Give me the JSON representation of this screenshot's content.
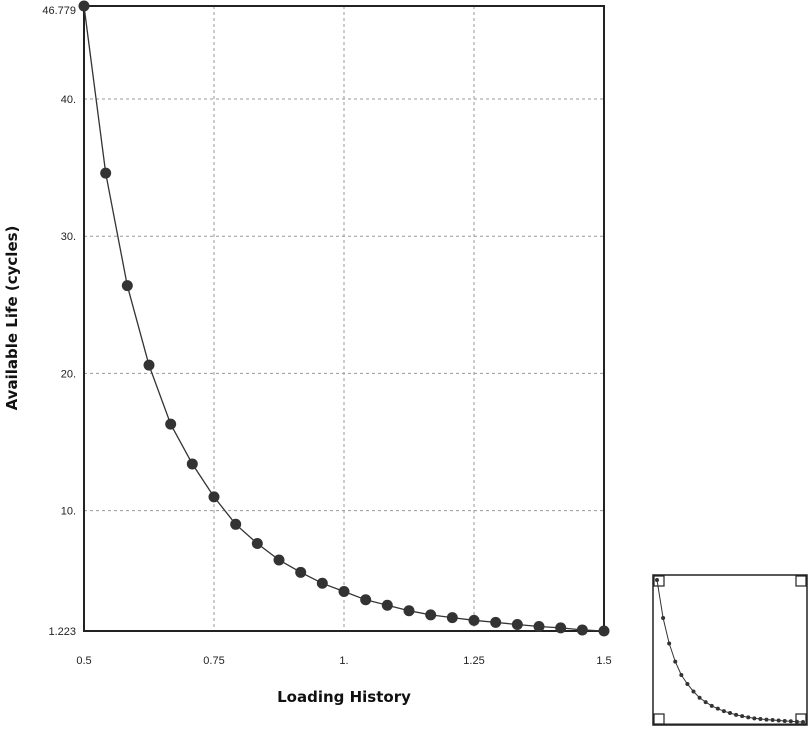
{
  "chart_data": {
    "type": "line",
    "xlabel": "Loading History",
    "ylabel": "Available Life (cycles)",
    "xlim": [
      0.5,
      1.5
    ],
    "ylim": [
      1.223,
      46.779
    ],
    "x_ticks": [
      0.5,
      0.75,
      1.0,
      1.25,
      1.5
    ],
    "x_tick_labels": [
      "0.5",
      "0.75",
      "1.",
      "1.25",
      "1.5"
    ],
    "y_ticks": [
      1.223,
      10,
      20,
      30,
      40,
      46.779
    ],
    "y_tick_labels": [
      "1.223",
      "10.",
      "20.",
      "30.",
      "40.",
      "46.779"
    ],
    "grid": true,
    "series": [
      {
        "x": [
          0.5,
          0.5417,
          0.5833,
          0.625,
          0.6667,
          0.7083,
          0.75,
          0.7917,
          0.8333,
          0.875,
          0.9167,
          0.9583,
          1.0,
          1.0417,
          1.0833,
          1.125,
          1.1667,
          1.2083,
          1.25,
          1.2917,
          1.3333,
          1.375,
          1.4167,
          1.4583,
          1.5
        ],
        "y": [
          46.779,
          34.6,
          26.4,
          20.6,
          16.3,
          13.4,
          11.0,
          9.0,
          7.6,
          6.4,
          5.5,
          4.7,
          4.1,
          3.5,
          3.1,
          2.7,
          2.4,
          2.2,
          2.0,
          1.85,
          1.7,
          1.55,
          1.45,
          1.3,
          1.223
        ]
      }
    ],
    "color": "#333333"
  }
}
